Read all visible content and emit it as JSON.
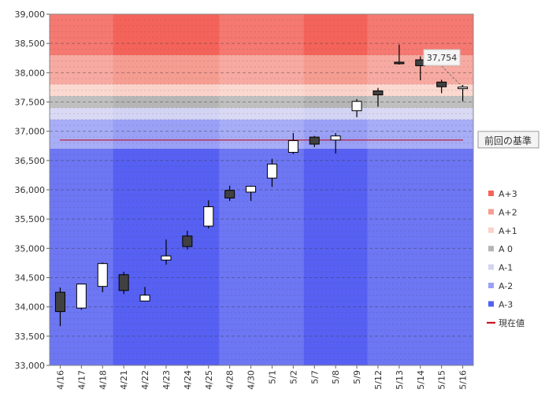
{
  "chart_data": {
    "type": "candlestick",
    "ylim": [
      33000,
      39000
    ],
    "ytick_step": 500,
    "yticks": [
      "33,000",
      "33,500",
      "34,000",
      "34,500",
      "35,000",
      "35,500",
      "36,000",
      "36,500",
      "37,000",
      "37,500",
      "38,000",
      "38,500",
      "39,000"
    ],
    "categories": [
      "4/16",
      "4/17",
      "4/18",
      "4/21",
      "4/22",
      "4/23",
      "4/24",
      "4/25",
      "4/28",
      "4/30",
      "5/1",
      "5/2",
      "5/7",
      "5/8",
      "5/9",
      "5/12",
      "5/13",
      "5/14",
      "5/15",
      "5/16"
    ],
    "candles": [
      {
        "date": "4/16",
        "open": 34250,
        "high": 34330,
        "low": 33670,
        "close": 33920
      },
      {
        "date": "4/17",
        "open": 33980,
        "high": 34390,
        "low": 33950,
        "close": 34390
      },
      {
        "date": "4/18",
        "open": 34350,
        "high": 34760,
        "low": 34250,
        "close": 34740
      },
      {
        "date": "4/21",
        "open": 34550,
        "high": 34600,
        "low": 34220,
        "close": 34280
      },
      {
        "date": "4/22",
        "open": 34100,
        "high": 34340,
        "low": 34100,
        "close": 34200
      },
      {
        "date": "4/23",
        "open": 34800,
        "high": 35150,
        "low": 34720,
        "close": 34870
      },
      {
        "date": "4/24",
        "open": 35210,
        "high": 35300,
        "low": 34980,
        "close": 35030
      },
      {
        "date": "4/25",
        "open": 35380,
        "high": 35820,
        "low": 35340,
        "close": 35710
      },
      {
        "date": "4/28",
        "open": 35990,
        "high": 36070,
        "low": 35810,
        "close": 35860
      },
      {
        "date": "4/30",
        "open": 35960,
        "high": 36070,
        "low": 35810,
        "close": 36060
      },
      {
        "date": "5/1",
        "open": 36200,
        "high": 36530,
        "low": 36050,
        "close": 36440
      },
      {
        "date": "5/2",
        "open": 36640,
        "high": 36970,
        "low": 36610,
        "close": 36840
      },
      {
        "date": "5/7",
        "open": 36900,
        "high": 36920,
        "low": 36730,
        "close": 36780
      },
      {
        "date": "5/8",
        "open": 36850,
        "high": 36970,
        "low": 36620,
        "close": 36920
      },
      {
        "date": "5/9",
        "open": 37350,
        "high": 37550,
        "low": 37240,
        "close": 37510
      },
      {
        "date": "5/12",
        "open": 37690,
        "high": 37740,
        "low": 37420,
        "close": 37620
      },
      {
        "date": "5/13",
        "open": 38180,
        "high": 38480,
        "low": 38140,
        "close": 38160
      },
      {
        "date": "5/14",
        "open": 38220,
        "high": 38280,
        "low": 37870,
        "close": 38120
      },
      {
        "date": "5/15",
        "open": 37840,
        "high": 37880,
        "low": 37650,
        "close": 37760
      },
      {
        "date": "5/16",
        "open": 37754,
        "high": 37790,
        "low": 37510,
        "close": 37754
      }
    ],
    "zones": [
      {
        "name": "A+3",
        "from": 38300,
        "to": 39000,
        "color": "#f4635a"
      },
      {
        "name": "A+2",
        "from": 37800,
        "to": 38300,
        "color": "#f69d92"
      },
      {
        "name": "A+1",
        "from": 37600,
        "to": 37800,
        "color": "#fbd2c9"
      },
      {
        "name": "A 0",
        "from": 37400,
        "to": 37600,
        "color": "#b5b5b5"
      },
      {
        "name": "A-1",
        "from": 37200,
        "to": 37400,
        "color": "#d3d3f3"
      },
      {
        "name": "A-2",
        "from": 36700,
        "to": 37200,
        "color": "#9aa0f6"
      },
      {
        "name": "A-3",
        "from": 33000,
        "to": 36700,
        "color": "#5660f2"
      }
    ],
    "legend": [
      {
        "label": "A+3",
        "color": "#f4635a",
        "kind": "square"
      },
      {
        "label": "A+2",
        "color": "#f69d92",
        "kind": "square"
      },
      {
        "label": "A+1",
        "color": "#fbd2c9",
        "kind": "square"
      },
      {
        "label": "A 0",
        "color": "#b5b5b5",
        "kind": "square"
      },
      {
        "label": "A-1",
        "color": "#d3d3f3",
        "kind": "square"
      },
      {
        "label": "A-2",
        "color": "#9aa0f6",
        "kind": "square"
      },
      {
        "label": "A-3",
        "color": "#5660f2",
        "kind": "square"
      },
      {
        "label": "現在値",
        "color": "#c0000a",
        "kind": "line"
      }
    ],
    "basis_line": {
      "value": 36850,
      "label": "前回の基準",
      "color": "#c0000a"
    },
    "annotation": {
      "label": "37,754",
      "value": 37754,
      "date": "5/16"
    },
    "colors": {
      "up_body": "#ffffff",
      "down_body": "#404040",
      "outline": "#000000",
      "grid": "#999999"
    }
  }
}
